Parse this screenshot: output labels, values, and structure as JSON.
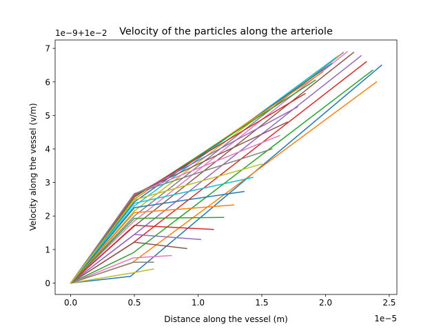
{
  "chart_data": {
    "type": "line",
    "title": "Velocity of the particles along the arteriole",
    "xlabel": "Distance along the vessel (m)",
    "ylabel": "Velocity along the vessel (v/m)",
    "x_offset_text": "1e−5",
    "y_offset_text": "1e−9+1e−2",
    "x_ticks": [
      0.0,
      0.5,
      1.0,
      1.5,
      2.0,
      2.5
    ],
    "x_tick_labels": [
      "0.0",
      "0.5",
      "1.0",
      "1.5",
      "2.0",
      "2.5"
    ],
    "y_ticks": [
      0,
      1,
      2,
      3,
      4,
      5,
      6,
      7
    ],
    "y_tick_labels": [
      "0",
      "1",
      "2",
      "3",
      "4",
      "5",
      "6",
      "7"
    ],
    "xlim": [
      -0.122,
      2.56
    ],
    "ylim": [
      -0.34,
      7.25
    ],
    "grid": false,
    "legend": "none",
    "series": [
      {
        "color": "#1f77b4",
        "points": [
          [
            0,
            0
          ],
          [
            0.47,
            0.2
          ],
          [
            2.44,
            6.5
          ]
        ]
      },
      {
        "color": "#ff7f0e",
        "points": [
          [
            0,
            0
          ],
          [
            0.48,
            0.6
          ],
          [
            2.4,
            6.0
          ]
        ]
      },
      {
        "color": "#2ca02c",
        "points": [
          [
            0,
            0
          ],
          [
            0.49,
            0.9
          ],
          [
            2.37,
            6.35
          ]
        ]
      },
      {
        "color": "#d62728",
        "points": [
          [
            0,
            0
          ],
          [
            0.49,
            1.2
          ],
          [
            2.32,
            6.6
          ]
        ]
      },
      {
        "color": "#9467bd",
        "points": [
          [
            0,
            0
          ],
          [
            0.5,
            1.45
          ],
          [
            2.28,
            6.78
          ]
        ]
      },
      {
        "color": "#8c564b",
        "points": [
          [
            0,
            0
          ],
          [
            0.5,
            1.7
          ],
          [
            2.22,
            6.88
          ]
        ]
      },
      {
        "color": "#e377c2",
        "points": [
          [
            0,
            0
          ],
          [
            0.5,
            1.85
          ],
          [
            2.17,
            6.9
          ]
        ]
      },
      {
        "color": "#7f7f7f",
        "points": [
          [
            0,
            0
          ],
          [
            0.5,
            2.0
          ],
          [
            2.14,
            6.88
          ]
        ]
      },
      {
        "color": "#bcbd22",
        "points": [
          [
            0,
            0
          ],
          [
            0.5,
            2.15
          ],
          [
            2.1,
            6.78
          ]
        ]
      },
      {
        "color": "#17becf",
        "points": [
          [
            0,
            0
          ],
          [
            0.5,
            2.3
          ],
          [
            2.08,
            6.72
          ]
        ]
      },
      {
        "color": "#1f77b4",
        "points": [
          [
            0,
            0
          ],
          [
            0.5,
            2.42
          ],
          [
            2.05,
            6.55
          ]
        ]
      },
      {
        "color": "#ff7f0e",
        "points": [
          [
            0,
            0
          ],
          [
            0.5,
            2.5
          ],
          [
            1.98,
            6.3
          ]
        ]
      },
      {
        "color": "#2ca02c",
        "points": [
          [
            0,
            0
          ],
          [
            0.5,
            2.56
          ],
          [
            1.92,
            6.05
          ]
        ]
      },
      {
        "color": "#d62728",
        "points": [
          [
            0,
            0
          ],
          [
            0.5,
            2.6
          ],
          [
            1.84,
            5.65
          ]
        ]
      },
      {
        "color": "#9467bd",
        "points": [
          [
            0,
            0
          ],
          [
            0.5,
            2.63
          ],
          [
            1.78,
            5.25
          ]
        ]
      },
      {
        "color": "#8c564b",
        "points": [
          [
            0,
            0
          ],
          [
            0.5,
            2.65
          ],
          [
            1.7,
            4.8
          ]
        ]
      },
      {
        "color": "#e377c2",
        "points": [
          [
            0,
            0
          ],
          [
            0.5,
            2.66
          ],
          [
            1.64,
            4.4
          ]
        ]
      },
      {
        "color": "#7f7f7f",
        "points": [
          [
            0,
            0
          ],
          [
            0.5,
            2.67
          ],
          [
            1.58,
            4.0
          ]
        ]
      },
      {
        "color": "#bcbd22",
        "points": [
          [
            0,
            0
          ],
          [
            0.48,
            0.3
          ],
          [
            0.65,
            0.42
          ]
        ]
      },
      {
        "color": "#e377c2",
        "points": [
          [
            0,
            0
          ],
          [
            0.49,
            0.75
          ],
          [
            0.79,
            0.82
          ]
        ]
      },
      {
        "color": "#7f7f7f",
        "points": [
          [
            0,
            0
          ],
          [
            0.49,
            0.62
          ],
          [
            0.65,
            0.62
          ]
        ]
      },
      {
        "color": "#8c564b",
        "points": [
          [
            0,
            0
          ],
          [
            0.5,
            1.22
          ],
          [
            0.91,
            1.03
          ]
        ]
      },
      {
        "color": "#9467bd",
        "points": [
          [
            0,
            0
          ],
          [
            0.5,
            1.45
          ],
          [
            1.02,
            1.3
          ]
        ]
      },
      {
        "color": "#d62728",
        "points": [
          [
            0,
            0
          ],
          [
            0.5,
            1.72
          ],
          [
            1.12,
            1.6
          ]
        ]
      },
      {
        "color": "#2ca02c",
        "points": [
          [
            0,
            0
          ],
          [
            0.5,
            1.93
          ],
          [
            1.2,
            1.96
          ]
        ]
      },
      {
        "color": "#ff7f0e",
        "points": [
          [
            0,
            0
          ],
          [
            0.5,
            2.1
          ],
          [
            1.28,
            2.33
          ]
        ]
      },
      {
        "color": "#1f77b4",
        "points": [
          [
            0,
            0
          ],
          [
            0.5,
            2.25
          ],
          [
            1.36,
            2.73
          ]
        ]
      },
      {
        "color": "#17becf",
        "points": [
          [
            0,
            0
          ],
          [
            0.5,
            2.38
          ],
          [
            1.43,
            3.15
          ]
        ]
      },
      {
        "color": "#bcbd22",
        "points": [
          [
            0,
            0
          ],
          [
            0.5,
            2.48
          ],
          [
            1.5,
            3.55
          ]
        ]
      }
    ]
  }
}
